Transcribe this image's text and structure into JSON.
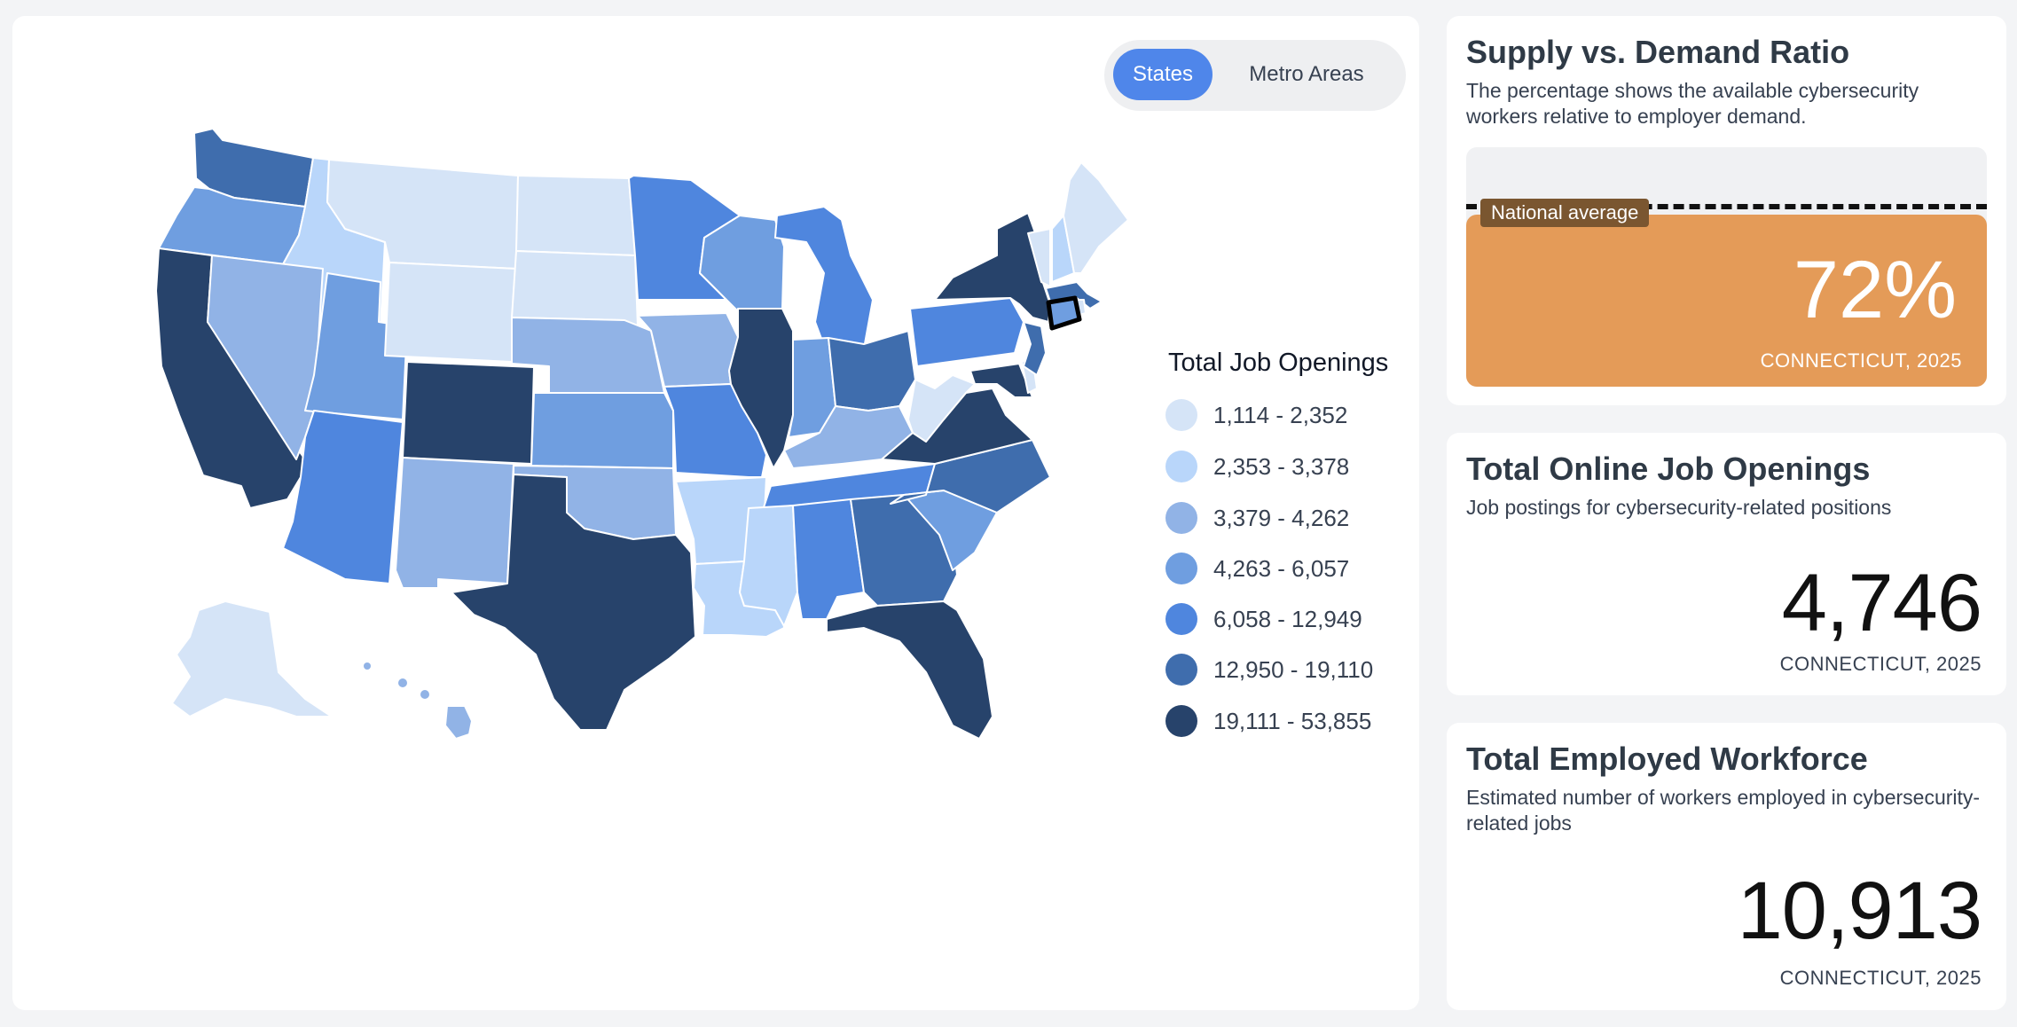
{
  "toggle": {
    "states_label": "States",
    "metro_label": "Metro Areas",
    "selected": "States"
  },
  "legend": {
    "title": "Total Job Openings",
    "items": [
      {
        "label": "1,114 - 2,352",
        "color": "#d5e4f7"
      },
      {
        "label": "2,353 - 3,378",
        "color": "#b9d6fa"
      },
      {
        "label": "3,379 - 4,262",
        "color": "#91b3e6"
      },
      {
        "label": "4,263 - 6,057",
        "color": "#6f9ee0"
      },
      {
        "label": "6,058 - 12,949",
        "color": "#4f86de"
      },
      {
        "label": "12,950 - 19,110",
        "color": "#3f6dad"
      },
      {
        "label": "19,111 - 53,855",
        "color": "#27436b"
      }
    ]
  },
  "map": {
    "selected_state": "Connecticut"
  },
  "ratio": {
    "title": "Supply vs. Demand Ratio",
    "description": "The percentage shows the available cybersecurity workers relative to employer demand.",
    "average_label": "National average",
    "value": "72%",
    "fill_fraction": 0.72,
    "caption": "CONNECTICUT, 2025",
    "fill_color": "#e49b58"
  },
  "openings": {
    "title": "Total Online Job Openings",
    "description": "Job postings for cybersecurity-related positions",
    "value": "4,746",
    "caption": "CONNECTICUT, 2025"
  },
  "workforce": {
    "title": "Total Employed Workforce",
    "description": "Estimated number of workers employed in cybersecurity-related jobs",
    "value": "10,913",
    "caption": "CONNECTICUT, 2025"
  }
}
